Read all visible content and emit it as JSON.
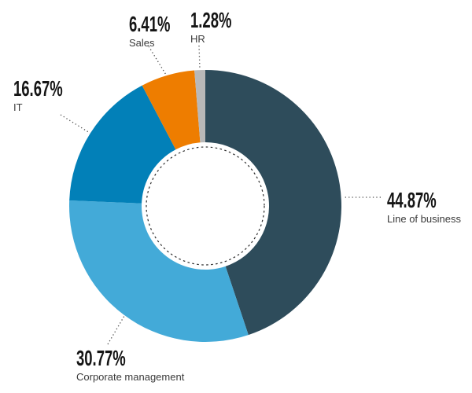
{
  "chart_data": {
    "type": "pie",
    "variant": "donut",
    "title": "",
    "unit": "%",
    "direction": "clockwise",
    "start_angle_deg": 0,
    "legend_position": "none",
    "categories": [
      "Line of business",
      "Corporate management",
      "IT",
      "Sales",
      "HR"
    ],
    "values": [
      44.87,
      30.77,
      16.67,
      6.41,
      1.28
    ],
    "slices": [
      {
        "label": "Line of business",
        "value": 44.87,
        "pct_label": "44.87%",
        "color": "#2e4c5b"
      },
      {
        "label": "Corporate management",
        "value": 30.77,
        "pct_label": "30.77%",
        "color": "#43aad8"
      },
      {
        "label": "IT",
        "value": 16.67,
        "pct_label": "16.67%",
        "color": "#0280b8"
      },
      {
        "label": "Sales",
        "value": 6.41,
        "pct_label": "6.41%",
        "color": "#ee7d00"
      },
      {
        "label": "HR",
        "value": 1.28,
        "pct_label": "1.28%",
        "color": "#b8b8b8"
      }
    ],
    "hole": {
      "fill": "#ffffff",
      "dashed_inner_circle": true,
      "dash_color": "#2d2d2d"
    },
    "leader_line_color": "#4d4d4d",
    "background": "#ffffff"
  }
}
